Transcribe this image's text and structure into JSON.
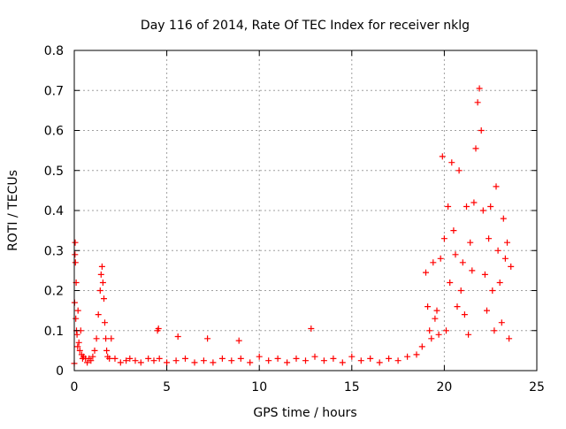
{
  "chart_data": {
    "type": "scatter",
    "title": "Day 116 of 2014, Rate Of TEC Index for receiver nklg",
    "xlabel": "GPS time / hours",
    "ylabel": "ROTI / TECUs",
    "xlim": [
      0,
      25
    ],
    "ylim": [
      0,
      0.8
    ],
    "xticks": [
      0,
      5,
      10,
      15,
      20,
      25
    ],
    "yticks": [
      0,
      0.1,
      0.2,
      0.3,
      0.4,
      0.5,
      0.6,
      0.7,
      0.8
    ],
    "xtick_labels": [
      "0",
      "5",
      "10",
      "15",
      "20",
      "25"
    ],
    "ytick_labels": [
      "0",
      "0.1",
      "0.2",
      "0.3",
      "0.4",
      "0.5",
      "0.6",
      "0.7",
      "0.8"
    ],
    "grid": true,
    "marker": "+",
    "color": "#ff0000",
    "series": [
      {
        "name": "ROTI",
        "x": [
          0.0,
          0.02,
          0.04,
          0.05,
          0.06,
          0.08,
          0.1,
          0.12,
          0.15,
          0.18,
          0.2,
          0.25,
          0.3,
          0.35,
          0.4,
          0.45,
          0.5,
          0.6,
          0.7,
          0.8,
          0.9,
          1.0,
          1.1,
          1.2,
          1.3,
          1.4,
          1.45,
          1.5,
          1.55,
          1.6,
          1.65,
          1.7,
          1.75,
          1.8,
          1.9,
          2.0,
          2.2,
          2.5,
          2.8,
          3.0,
          3.3,
          3.6,
          4.0,
          4.3,
          4.5,
          4.55,
          4.6,
          5.0,
          5.5,
          5.6,
          6.0,
          6.5,
          7.0,
          7.2,
          7.5,
          8.0,
          8.5,
          8.9,
          9.0,
          9.5,
          10.0,
          10.5,
          11.0,
          11.5,
          12.0,
          12.5,
          12.8,
          13.0,
          13.5,
          14.0,
          14.5,
          15.0,
          15.5,
          16.0,
          16.5,
          17.0,
          17.5,
          18.0,
          18.5,
          18.8,
          19.0,
          19.1,
          19.2,
          19.3,
          19.4,
          19.5,
          19.6,
          19.7,
          19.8,
          19.9,
          20.0,
          20.1,
          20.2,
          20.3,
          20.4,
          20.5,
          20.6,
          20.7,
          20.8,
          20.9,
          21.0,
          21.1,
          21.2,
          21.3,
          21.4,
          21.5,
          21.6,
          21.7,
          21.8,
          21.9,
          22.0,
          22.1,
          22.2,
          22.3,
          22.4,
          22.5,
          22.6,
          22.7,
          22.8,
          22.9,
          23.0,
          23.1,
          23.2,
          23.3,
          23.4,
          23.5,
          23.6
        ],
        "y": [
          0.018,
          0.17,
          0.29,
          0.32,
          0.27,
          0.13,
          0.22,
          0.1,
          0.09,
          0.06,
          0.15,
          0.07,
          0.05,
          0.1,
          0.04,
          0.03,
          0.035,
          0.03,
          0.02,
          0.03,
          0.025,
          0.035,
          0.05,
          0.08,
          0.14,
          0.2,
          0.24,
          0.26,
          0.22,
          0.18,
          0.12,
          0.08,
          0.05,
          0.035,
          0.03,
          0.08,
          0.03,
          0.02,
          0.025,
          0.03,
          0.025,
          0.02,
          0.03,
          0.025,
          0.1,
          0.105,
          0.03,
          0.02,
          0.025,
          0.085,
          0.03,
          0.02,
          0.025,
          0.08,
          0.02,
          0.03,
          0.025,
          0.075,
          0.03,
          0.02,
          0.035,
          0.025,
          0.03,
          0.02,
          0.03,
          0.025,
          0.105,
          0.035,
          0.025,
          0.03,
          0.02,
          0.035,
          0.025,
          0.03,
          0.02,
          0.03,
          0.025,
          0.035,
          0.04,
          0.06,
          0.245,
          0.16,
          0.1,
          0.08,
          0.27,
          0.13,
          0.15,
          0.09,
          0.28,
          0.535,
          0.33,
          0.1,
          0.41,
          0.22,
          0.52,
          0.35,
          0.29,
          0.16,
          0.5,
          0.2,
          0.27,
          0.14,
          0.41,
          0.09,
          0.32,
          0.25,
          0.42,
          0.555,
          0.67,
          0.705,
          0.6,
          0.4,
          0.24,
          0.15,
          0.33,
          0.41,
          0.2,
          0.1,
          0.46,
          0.3,
          0.22,
          0.12,
          0.38,
          0.28,
          0.32,
          0.08,
          0.26
        ]
      }
    ]
  }
}
